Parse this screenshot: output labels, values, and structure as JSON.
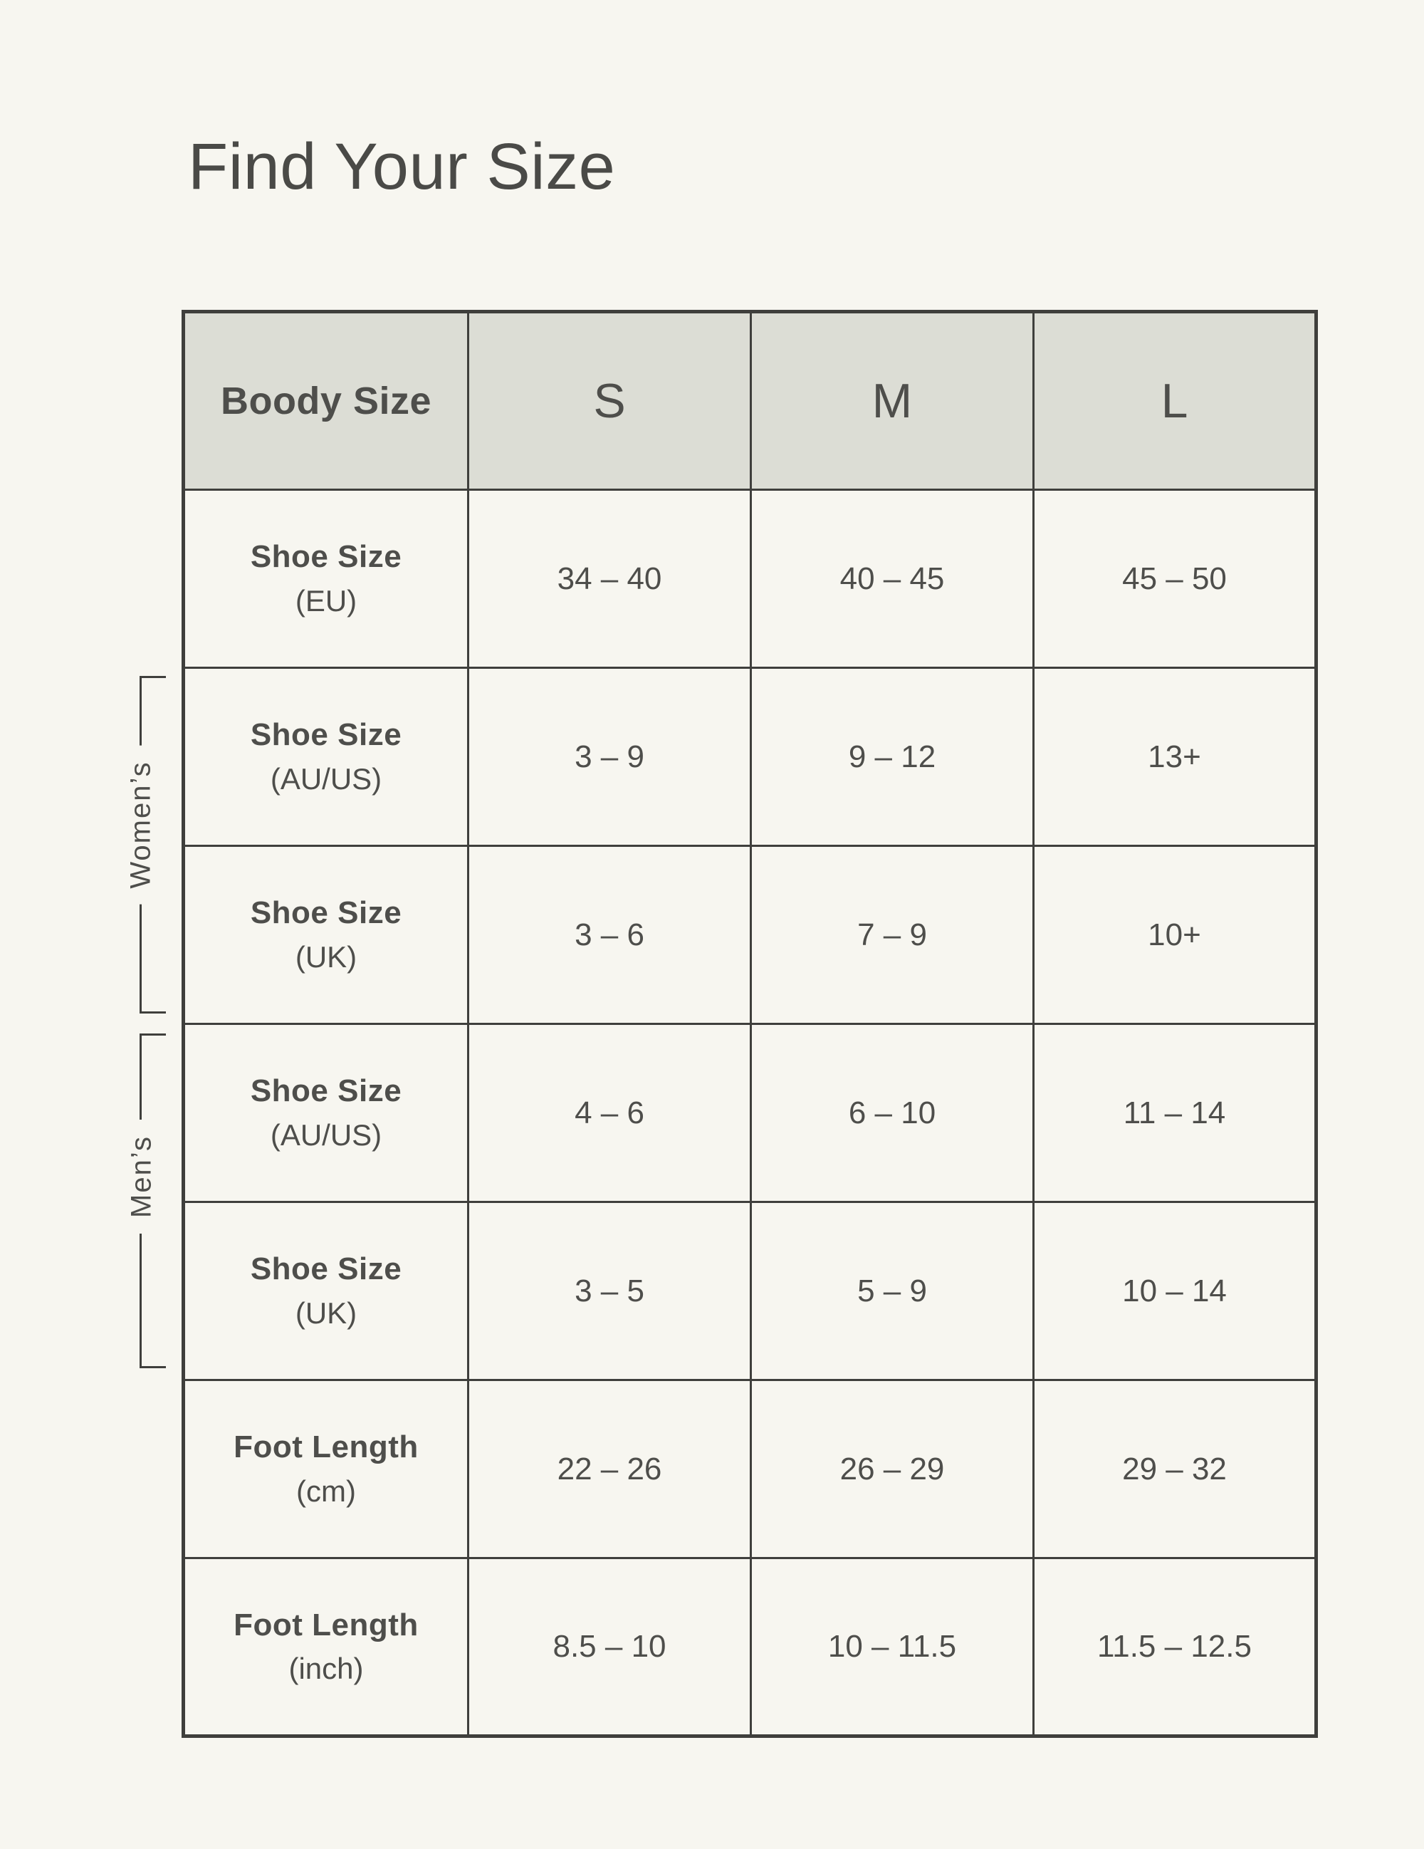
{
  "page": {
    "title": "Find Your Size"
  },
  "colors": {
    "bg": "#f7f6f0",
    "header_bg": "#dcddd5",
    "border": "#3f3f3c",
    "text": "#4e4e4b",
    "title": "#4a4a47"
  },
  "table": {
    "header": {
      "label": "Boody Size",
      "sizes": [
        "S",
        "M",
        "L"
      ]
    },
    "groups": {
      "womens": "Women’s",
      "mens": "Men’s"
    },
    "rows": [
      {
        "label": "Shoe Size",
        "unit": "(EU)",
        "s": "34 – 40",
        "m": "40 – 45",
        "l": "45 – 50"
      },
      {
        "label": "Shoe Size",
        "unit": "(AU/US)",
        "s": "3 – 9",
        "m": "9 – 12",
        "l": "13+"
      },
      {
        "label": "Shoe Size",
        "unit": "(UK)",
        "s": "3 – 6",
        "m": "7 – 9",
        "l": "10+"
      },
      {
        "label": "Shoe Size",
        "unit": "(AU/US)",
        "s": "4 – 6",
        "m": "6 – 10",
        "l": "11 – 14"
      },
      {
        "label": "Shoe Size",
        "unit": "(UK)",
        "s": "3 – 5",
        "m": "5 – 9",
        "l": "10 – 14"
      },
      {
        "label": "Foot Length",
        "unit": "(cm)",
        "s": "22 – 26",
        "m": "26 – 29",
        "l": "29 – 32"
      },
      {
        "label": "Foot Length",
        "unit": "(inch)",
        "s": "8.5 – 10",
        "m": "10 – 11.5",
        "l": "11.5 – 12.5"
      }
    ]
  }
}
